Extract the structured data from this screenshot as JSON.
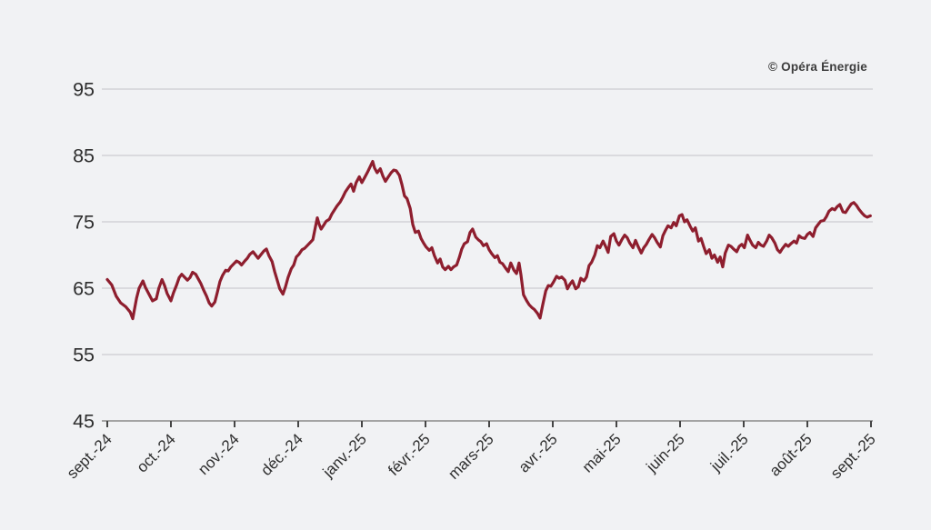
{
  "chart_data": {
    "type": "line",
    "title": "",
    "source_label": "© Opéra Énergie",
    "legend": "none",
    "grid": "horizontal",
    "x_axis": {
      "tick_labels": [
        "sept.-24",
        "oct.-24",
        "nov.-24",
        "déc.-24",
        "janv.-25",
        "févr.-25",
        "mars-25",
        "avr.-25",
        "mai-25",
        "juin-25",
        "juil.-25",
        "août-25",
        "sept.-25"
      ]
    },
    "y_axis": {
      "ticks": [
        95,
        85,
        75,
        65,
        55,
        45
      ],
      "range": [
        45,
        95
      ]
    },
    "style": {
      "line_color": "#8e1e2e",
      "grid_color": "#c3c3c7",
      "axis_color": "#8a8a8a",
      "tick_color": "#454545",
      "label_color": "#2e2e2e",
      "background": "#f1f2f4"
    },
    "series": [
      {
        "name": "price-index",
        "points": [
          [
            0.0,
            66.3
          ],
          [
            0.07,
            65.5
          ],
          [
            0.14,
            63.8
          ],
          [
            0.21,
            62.8
          ],
          [
            0.29,
            62.2
          ],
          [
            0.36,
            61.4
          ],
          [
            0.4,
            60.4
          ],
          [
            0.46,
            63.5
          ],
          [
            0.5,
            65.0
          ],
          [
            0.56,
            66.1
          ],
          [
            0.6,
            65.1
          ],
          [
            0.66,
            64.0
          ],
          [
            0.71,
            63.1
          ],
          [
            0.77,
            63.4
          ],
          [
            0.81,
            65.0
          ],
          [
            0.86,
            66.3
          ],
          [
            0.9,
            65.4
          ],
          [
            0.94,
            64.2
          ],
          [
            1.0,
            63.1
          ],
          [
            1.04,
            64.3
          ],
          [
            1.09,
            65.5
          ],
          [
            1.13,
            66.6
          ],
          [
            1.17,
            67.1
          ],
          [
            1.21,
            66.7
          ],
          [
            1.26,
            66.2
          ],
          [
            1.3,
            66.6
          ],
          [
            1.34,
            67.4
          ],
          [
            1.39,
            67.1
          ],
          [
            1.43,
            66.4
          ],
          [
            1.47,
            65.7
          ],
          [
            1.51,
            64.8
          ],
          [
            1.56,
            63.8
          ],
          [
            1.6,
            62.8
          ],
          [
            1.64,
            62.3
          ],
          [
            1.69,
            62.9
          ],
          [
            1.73,
            64.4
          ],
          [
            1.77,
            66.0
          ],
          [
            1.81,
            66.9
          ],
          [
            1.86,
            67.7
          ],
          [
            1.9,
            67.6
          ],
          [
            1.94,
            68.2
          ],
          [
            1.99,
            68.7
          ],
          [
            2.03,
            69.1
          ],
          [
            2.07,
            68.9
          ],
          [
            2.11,
            68.5
          ],
          [
            2.16,
            69.1
          ],
          [
            2.2,
            69.5
          ],
          [
            2.24,
            70.1
          ],
          [
            2.29,
            70.5
          ],
          [
            2.33,
            70.0
          ],
          [
            2.37,
            69.5
          ],
          [
            2.41,
            70.0
          ],
          [
            2.46,
            70.6
          ],
          [
            2.5,
            70.9
          ],
          [
            2.54,
            69.9
          ],
          [
            2.59,
            69.0
          ],
          [
            2.63,
            67.5
          ],
          [
            2.67,
            66.2
          ],
          [
            2.71,
            64.9
          ],
          [
            2.76,
            64.1
          ],
          [
            2.8,
            65.2
          ],
          [
            2.84,
            66.6
          ],
          [
            2.89,
            67.9
          ],
          [
            2.93,
            68.5
          ],
          [
            2.97,
            69.7
          ],
          [
            3.01,
            70.1
          ],
          [
            3.06,
            70.8
          ],
          [
            3.1,
            71.0
          ],
          [
            3.14,
            71.4
          ],
          [
            3.19,
            71.9
          ],
          [
            3.23,
            72.3
          ],
          [
            3.27,
            74.2
          ],
          [
            3.3,
            75.6
          ],
          [
            3.33,
            74.6
          ],
          [
            3.36,
            73.9
          ],
          [
            3.4,
            74.5
          ],
          [
            3.44,
            75.1
          ],
          [
            3.49,
            75.4
          ],
          [
            3.53,
            76.2
          ],
          [
            3.57,
            76.8
          ],
          [
            3.61,
            77.4
          ],
          [
            3.66,
            78.0
          ],
          [
            3.7,
            78.7
          ],
          [
            3.74,
            79.5
          ],
          [
            3.79,
            80.2
          ],
          [
            3.83,
            80.7
          ],
          [
            3.87,
            79.6
          ],
          [
            3.91,
            80.9
          ],
          [
            3.96,
            81.8
          ],
          [
            4.0,
            80.9
          ],
          [
            4.04,
            81.6
          ],
          [
            4.09,
            82.5
          ],
          [
            4.13,
            83.3
          ],
          [
            4.17,
            84.1
          ],
          [
            4.2,
            83.1
          ],
          [
            4.24,
            82.4
          ],
          [
            4.29,
            83.0
          ],
          [
            4.33,
            81.9
          ],
          [
            4.37,
            81.1
          ],
          [
            4.41,
            81.7
          ],
          [
            4.46,
            82.4
          ],
          [
            4.5,
            82.8
          ],
          [
            4.54,
            82.7
          ],
          [
            4.59,
            82.0
          ],
          [
            4.63,
            80.6
          ],
          [
            4.67,
            78.9
          ],
          [
            4.71,
            78.5
          ],
          [
            4.76,
            77.0
          ],
          [
            4.8,
            74.6
          ],
          [
            4.84,
            73.4
          ],
          [
            4.89,
            73.6
          ],
          [
            4.93,
            72.5
          ],
          [
            4.97,
            71.8
          ],
          [
            5.01,
            71.2
          ],
          [
            5.06,
            70.7
          ],
          [
            5.1,
            71.1
          ],
          [
            5.14,
            69.9
          ],
          [
            5.19,
            68.8
          ],
          [
            5.23,
            69.4
          ],
          [
            5.27,
            68.2
          ],
          [
            5.31,
            67.8
          ],
          [
            5.36,
            68.3
          ],
          [
            5.4,
            67.8
          ],
          [
            5.44,
            68.2
          ],
          [
            5.49,
            68.5
          ],
          [
            5.53,
            69.6
          ],
          [
            5.57,
            70.9
          ],
          [
            5.61,
            71.7
          ],
          [
            5.66,
            72.0
          ],
          [
            5.7,
            73.4
          ],
          [
            5.74,
            73.9
          ],
          [
            5.79,
            72.7
          ],
          [
            5.83,
            72.3
          ],
          [
            5.87,
            72.0
          ],
          [
            5.91,
            71.4
          ],
          [
            5.96,
            71.7
          ],
          [
            6.0,
            70.8
          ],
          [
            6.04,
            70.2
          ],
          [
            6.09,
            69.6
          ],
          [
            6.13,
            69.9
          ],
          [
            6.17,
            68.9
          ],
          [
            6.21,
            68.7
          ],
          [
            6.26,
            68.0
          ],
          [
            6.3,
            67.5
          ],
          [
            6.34,
            68.8
          ],
          [
            6.39,
            67.7
          ],
          [
            6.43,
            67.2
          ],
          [
            6.47,
            68.8
          ],
          [
            6.5,
            67.0
          ],
          [
            6.54,
            64.0
          ],
          [
            6.59,
            63.1
          ],
          [
            6.63,
            62.5
          ],
          [
            6.67,
            62.1
          ],
          [
            6.71,
            61.8
          ],
          [
            6.76,
            61.2
          ],
          [
            6.8,
            60.5
          ],
          [
            6.84,
            62.4
          ],
          [
            6.89,
            64.6
          ],
          [
            6.93,
            65.4
          ],
          [
            6.97,
            65.3
          ],
          [
            7.01,
            65.9
          ],
          [
            7.06,
            66.8
          ],
          [
            7.1,
            66.5
          ],
          [
            7.14,
            66.7
          ],
          [
            7.19,
            66.2
          ],
          [
            7.23,
            64.9
          ],
          [
            7.27,
            65.6
          ],
          [
            7.31,
            66.1
          ],
          [
            7.36,
            64.9
          ],
          [
            7.4,
            65.2
          ],
          [
            7.44,
            66.5
          ],
          [
            7.49,
            66.1
          ],
          [
            7.53,
            66.7
          ],
          [
            7.57,
            68.4
          ],
          [
            7.61,
            68.9
          ],
          [
            7.66,
            70.0
          ],
          [
            7.7,
            71.4
          ],
          [
            7.74,
            71.1
          ],
          [
            7.79,
            72.1
          ],
          [
            7.83,
            71.3
          ],
          [
            7.87,
            70.4
          ],
          [
            7.91,
            72.8
          ],
          [
            7.96,
            73.2
          ],
          [
            8.0,
            72.1
          ],
          [
            8.04,
            71.5
          ],
          [
            8.09,
            72.4
          ],
          [
            8.13,
            73.0
          ],
          [
            8.17,
            72.6
          ],
          [
            8.21,
            71.8
          ],
          [
            8.26,
            71.1
          ],
          [
            8.3,
            72.2
          ],
          [
            8.34,
            71.3
          ],
          [
            8.39,
            70.3
          ],
          [
            8.43,
            71.1
          ],
          [
            8.47,
            71.6
          ],
          [
            8.51,
            72.3
          ],
          [
            8.56,
            73.1
          ],
          [
            8.6,
            72.6
          ],
          [
            8.64,
            71.9
          ],
          [
            8.69,
            71.2
          ],
          [
            8.73,
            72.9
          ],
          [
            8.77,
            73.7
          ],
          [
            8.81,
            74.4
          ],
          [
            8.86,
            74.1
          ],
          [
            8.9,
            74.9
          ],
          [
            8.94,
            74.4
          ],
          [
            8.99,
            75.9
          ],
          [
            9.03,
            76.1
          ],
          [
            9.07,
            75.0
          ],
          [
            9.11,
            75.3
          ],
          [
            9.16,
            74.3
          ],
          [
            9.2,
            73.6
          ],
          [
            9.24,
            74.1
          ],
          [
            9.29,
            72.1
          ],
          [
            9.33,
            72.5
          ],
          [
            9.37,
            71.3
          ],
          [
            9.41,
            70.2
          ],
          [
            9.46,
            70.8
          ],
          [
            9.5,
            69.5
          ],
          [
            9.54,
            70.0
          ],
          [
            9.59,
            68.9
          ],
          [
            9.63,
            69.7
          ],
          [
            9.67,
            68.2
          ],
          [
            9.71,
            70.3
          ],
          [
            9.76,
            71.5
          ],
          [
            9.8,
            71.3
          ],
          [
            9.84,
            70.9
          ],
          [
            9.89,
            70.5
          ],
          [
            9.93,
            71.3
          ],
          [
            9.97,
            71.6
          ],
          [
            10.01,
            71.1
          ],
          [
            10.06,
            73.0
          ],
          [
            10.1,
            72.2
          ],
          [
            10.14,
            71.5
          ],
          [
            10.19,
            71.1
          ],
          [
            10.23,
            71.9
          ],
          [
            10.27,
            71.5
          ],
          [
            10.31,
            71.3
          ],
          [
            10.36,
            72.1
          ],
          [
            10.4,
            73.0
          ],
          [
            10.44,
            72.6
          ],
          [
            10.49,
            71.8
          ],
          [
            10.53,
            70.8
          ],
          [
            10.57,
            70.4
          ],
          [
            10.61,
            71.0
          ],
          [
            10.66,
            71.6
          ],
          [
            10.7,
            71.3
          ],
          [
            10.74,
            71.7
          ],
          [
            10.79,
            72.1
          ],
          [
            10.83,
            71.8
          ],
          [
            10.87,
            72.9
          ],
          [
            10.91,
            72.6
          ],
          [
            10.96,
            72.5
          ],
          [
            11.0,
            73.1
          ],
          [
            11.04,
            73.4
          ],
          [
            11.09,
            72.8
          ],
          [
            11.13,
            74.1
          ],
          [
            11.17,
            74.6
          ],
          [
            11.21,
            75.1
          ],
          [
            11.26,
            75.2
          ],
          [
            11.3,
            75.8
          ],
          [
            11.34,
            76.6
          ],
          [
            11.39,
            77.0
          ],
          [
            11.43,
            76.8
          ],
          [
            11.47,
            77.3
          ],
          [
            11.51,
            77.6
          ],
          [
            11.56,
            76.5
          ],
          [
            11.6,
            76.4
          ],
          [
            11.64,
            77.0
          ],
          [
            11.69,
            77.7
          ],
          [
            11.73,
            77.9
          ],
          [
            11.77,
            77.5
          ],
          [
            11.81,
            76.9
          ],
          [
            11.86,
            76.3
          ],
          [
            11.9,
            75.9
          ],
          [
            11.94,
            75.7
          ],
          [
            11.99,
            75.9
          ]
        ]
      }
    ]
  }
}
